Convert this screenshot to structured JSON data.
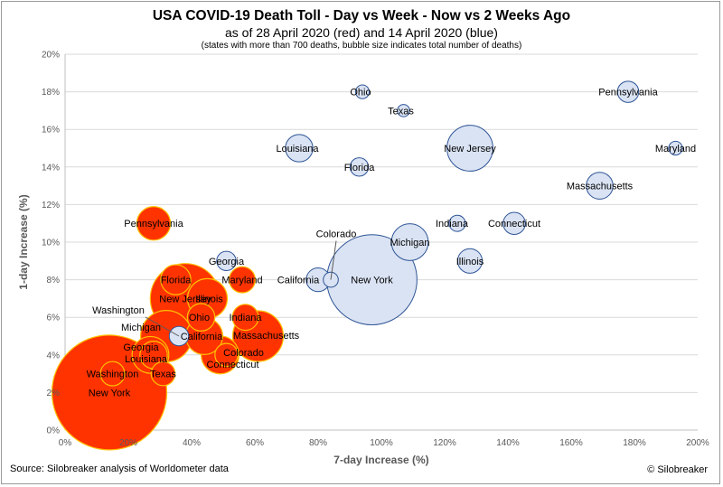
{
  "header": {
    "title": "USA COVID-19 Death Toll - Day vs Week - Now vs 2 Weeks Ago",
    "subtitle": "as of 28 April 2020 (red) and 14 April 2020 (blue)",
    "note": "(states with more than 700 deaths, bubble size indicates total number of deaths)"
  },
  "footer": {
    "source": "Source: Silobreaker analysis of Worldometer data",
    "copyright": "© Silobreaker"
  },
  "chart_data": {
    "type": "scatter",
    "xlabel": "7-day Increase (%)",
    "ylabel": "1-day Increase (%)",
    "xlim": [
      0,
      200
    ],
    "ylim": [
      0,
      20
    ],
    "x_ticks": [
      "0%",
      "20%",
      "40%",
      "60%",
      "80%",
      "100%",
      "120%",
      "140%",
      "160%",
      "180%",
      "200%"
    ],
    "y_ticks": [
      "0%",
      "2%",
      "4%",
      "6%",
      "8%",
      "10%",
      "12%",
      "14%",
      "16%",
      "18%",
      "20%"
    ],
    "grid": "horizontal",
    "colors": {
      "red_fill": "#ff3300",
      "red_stroke": "#ffc000",
      "blue_fill": "#dae3f3",
      "blue_stroke": "#2f5597",
      "grid": "#d9d9d9"
    },
    "series": [
      {
        "name": "28 April 2020 (red)",
        "points": [
          {
            "label": "New York",
            "x": 14,
            "y": 2,
            "size": 17500
          },
          {
            "label": "Washington",
            "x": 15,
            "y": 3,
            "size": 780
          },
          {
            "label": "Texas",
            "x": 31,
            "y": 3,
            "size": 760
          },
          {
            "label": "Georgia",
            "x": 28,
            "y": 4,
            "size": 1000
          },
          {
            "label": "Louisiana",
            "x": 27,
            "y": 4,
            "size": 1800
          },
          {
            "label": "Michigan",
            "x": 32,
            "y": 5,
            "size": 3500
          },
          {
            "label": "Pennsylvania",
            "x": 28,
            "y": 11,
            "size": 1500
          },
          {
            "label": "Florida",
            "x": 35,
            "y": 8,
            "size": 1200
          },
          {
            "label": "New Jersey",
            "x": 38,
            "y": 7,
            "size": 6500
          },
          {
            "label": "Illinois",
            "x": 45,
            "y": 7,
            "size": 2100
          },
          {
            "label": "Ohio",
            "x": 43,
            "y": 6,
            "size": 1000
          },
          {
            "label": "California",
            "x": 44,
            "y": 5,
            "size": 1800
          },
          {
            "label": "Colorado",
            "x": 51,
            "y": 4,
            "size": 700
          },
          {
            "label": "Connecticut",
            "x": 49,
            "y": 4,
            "size": 1900
          },
          {
            "label": "Maryland",
            "x": 56,
            "y": 8,
            "size": 900
          },
          {
            "label": "Indiana",
            "x": 57,
            "y": 6,
            "size": 900
          },
          {
            "label": "Massachusetts",
            "x": 61,
            "y": 5,
            "size": 3400
          }
        ]
      },
      {
        "name": "14 April 2020 (blue)",
        "points": [
          {
            "label": "Ohio",
            "x": 94,
            "y": 18,
            "size": 250
          },
          {
            "label": "Texas",
            "x": 107,
            "y": 17,
            "size": 200
          },
          {
            "label": "Pennsylvania",
            "x": 178,
            "y": 18,
            "size": 600
          },
          {
            "label": "Louisiana",
            "x": 74,
            "y": 15,
            "size": 1000
          },
          {
            "label": "New Jersey",
            "x": 128,
            "y": 15,
            "size": 2800
          },
          {
            "label": "Maryland",
            "x": 193,
            "y": 15,
            "size": 250
          },
          {
            "label": "Florida",
            "x": 93,
            "y": 14,
            "size": 450
          },
          {
            "label": "Massachusetts",
            "x": 169,
            "y": 13,
            "size": 950
          },
          {
            "label": "Indiana",
            "x": 124,
            "y": 11,
            "size": 350
          },
          {
            "label": "Connecticut",
            "x": 142,
            "y": 11,
            "size": 650
          },
          {
            "label": "Michigan",
            "x": 109,
            "y": 10,
            "size": 1800
          },
          {
            "label": "Illinois",
            "x": 128,
            "y": 9,
            "size": 800
          },
          {
            "label": "Georgia",
            "x": 51,
            "y": 9,
            "size": 500
          },
          {
            "label": "California",
            "x": 80,
            "y": 8,
            "size": 750
          },
          {
            "label": "Colorado",
            "x": 84,
            "y": 8,
            "size": 300
          },
          {
            "label": "New York",
            "x": 97,
            "y": 8,
            "size": 10800
          },
          {
            "label": "Washington",
            "x": 36,
            "y": 5,
            "size": 500
          }
        ]
      }
    ]
  }
}
